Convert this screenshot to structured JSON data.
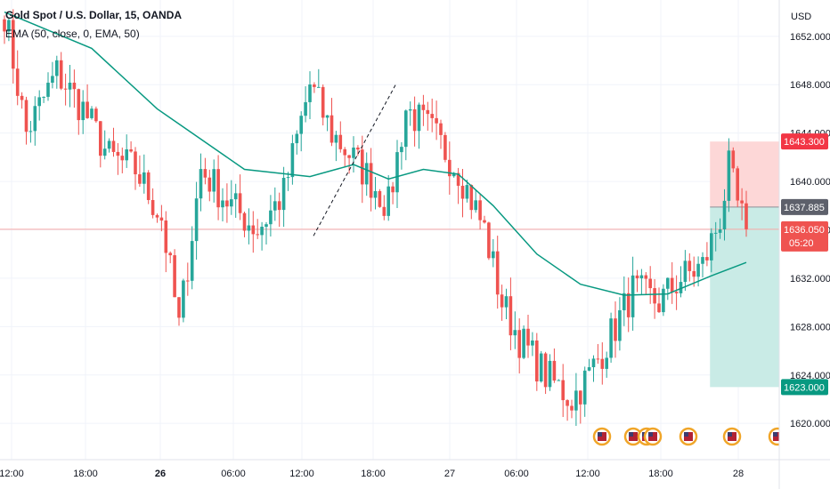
{
  "header": {
    "symbol": "Gold Spot / U.S. Dollar, 15, OANDA",
    "indicator": "EMA (50, close, 0, EMA, 50)"
  },
  "currency": "USD",
  "colors": {
    "up": "#26a69a",
    "down": "#ef5350",
    "ema": "#089981",
    "stop_zone": "#fdd7d7",
    "target_zone": "#c9ebe6",
    "entry_label": "#5d606b",
    "stop_label": "#f23645",
    "target_label": "#089981",
    "price_line": "#f7a9a7"
  },
  "chart_data": {
    "type": "candlestick",
    "timeframe": "15",
    "ylim": [
      1617,
      1655
    ],
    "y_ticks": [
      1620,
      1624,
      1628,
      1632,
      1636,
      1640,
      1644,
      1648,
      1652
    ],
    "y_tick_labels": [
      "1620.000",
      "1624.000",
      "1628.000",
      "1632.000",
      "1636.000",
      "1640.000",
      "1644.000",
      "1648.000",
      "1652.000"
    ],
    "x_labels": [
      "12:00",
      "18:00",
      "26",
      "06:00",
      "12:00",
      "18:00",
      "27",
      "06:00",
      "12:00",
      "18:00",
      "28"
    ],
    "series_path": [
      [
        0,
        1654
      ],
      [
        5,
        1644
      ],
      [
        12,
        1649
      ],
      [
        18,
        1646
      ],
      [
        24,
        1642
      ],
      [
        30,
        1641
      ],
      [
        36,
        1637
      ],
      [
        40,
        1628
      ],
      [
        45,
        1641
      ],
      [
        52,
        1638
      ],
      [
        58,
        1636
      ],
      [
        64,
        1639
      ],
      [
        70,
        1648
      ],
      [
        75,
        1644
      ],
      [
        82,
        1641
      ],
      [
        88,
        1638
      ],
      [
        92,
        1646
      ],
      [
        98,
        1644
      ],
      [
        104,
        1641
      ],
      [
        110,
        1636
      ],
      [
        114,
        1630
      ],
      [
        118,
        1627
      ],
      [
        124,
        1624
      ],
      [
        130,
        1622
      ],
      [
        134,
        1624
      ],
      [
        140,
        1628
      ],
      [
        144,
        1631
      ],
      [
        150,
        1630
      ],
      [
        155,
        1632
      ],
      [
        160,
        1633
      ],
      [
        164,
        1637
      ],
      [
        166,
        1641
      ],
      [
        168,
        1638
      ],
      [
        170,
        1636
      ]
    ],
    "ema": [
      [
        0,
        1654
      ],
      [
        20,
        1651
      ],
      [
        35,
        1646
      ],
      [
        55,
        1641
      ],
      [
        70,
        1640.4
      ],
      [
        80,
        1641.4
      ],
      [
        88,
        1640.2
      ],
      [
        96,
        1641
      ],
      [
        104,
        1640.6
      ],
      [
        112,
        1638
      ],
      [
        122,
        1634
      ],
      [
        132,
        1631.5
      ],
      [
        142,
        1630.6
      ],
      [
        152,
        1630.7
      ],
      [
        162,
        1632.2
      ],
      [
        170,
        1633.3
      ]
    ],
    "trendline": [
      [
        1635.5,
        1636.3
      ],
      [
        1649.5,
        1648.1
      ]
    ],
    "position": {
      "entry": 1637.885,
      "stop": 1643.3,
      "target": 1623.0,
      "entry_label": "1637.885",
      "stop_label": "1643.300",
      "target_label": "1623.000"
    },
    "last_price": 1636.05,
    "last_price_label": "1636.050",
    "countdown": "05:20",
    "events": 7
  }
}
